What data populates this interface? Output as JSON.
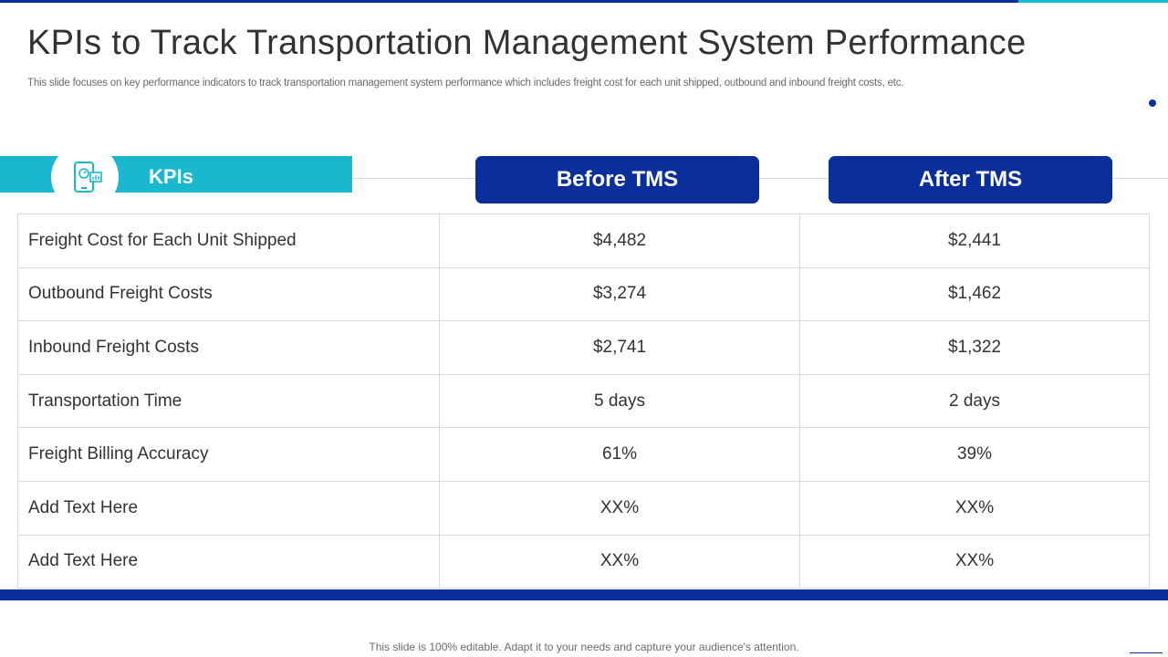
{
  "slide": {
    "title": "KPIs to Track Transportation Management System Performance",
    "subtitle": "This slide focuses on key performance indicators to track transportation management system performance which includes freight cost for each unit shipped, outbound and inbound freight costs, etc.",
    "footer": "This slide is 100% editable. Adapt it to your needs and capture your audience's attention."
  },
  "table": {
    "kpi_header": "KPIs",
    "kpi_icon": "mobile-dashboard-icon",
    "before_header": "Before TMS",
    "after_header": "After TMS",
    "rows": [
      {
        "kpi": "Freight Cost for Each Unit Shipped",
        "before": "$4,482",
        "after": "$2,441"
      },
      {
        "kpi": "Outbound Freight Costs",
        "before": "$3,274",
        "after": "$1,462"
      },
      {
        "kpi": "Inbound Freight Costs",
        "before": "$2,741",
        "after": "$1,322"
      },
      {
        "kpi": "Transportation Time",
        "before": "5 days",
        "after": "2 days"
      },
      {
        "kpi": "Freight Billing Accuracy",
        "before": "61%",
        "after": "39%"
      },
      {
        "kpi": "Add Text Here",
        "before": "XX%",
        "after": "XX%"
      },
      {
        "kpi": "Add Text Here",
        "before": "XX%",
        "after": "XX%"
      }
    ]
  },
  "colors": {
    "primary": "#0a2f9b",
    "accent": "#19b8cf",
    "text": "#333333",
    "border": "#d9d9d9"
  }
}
